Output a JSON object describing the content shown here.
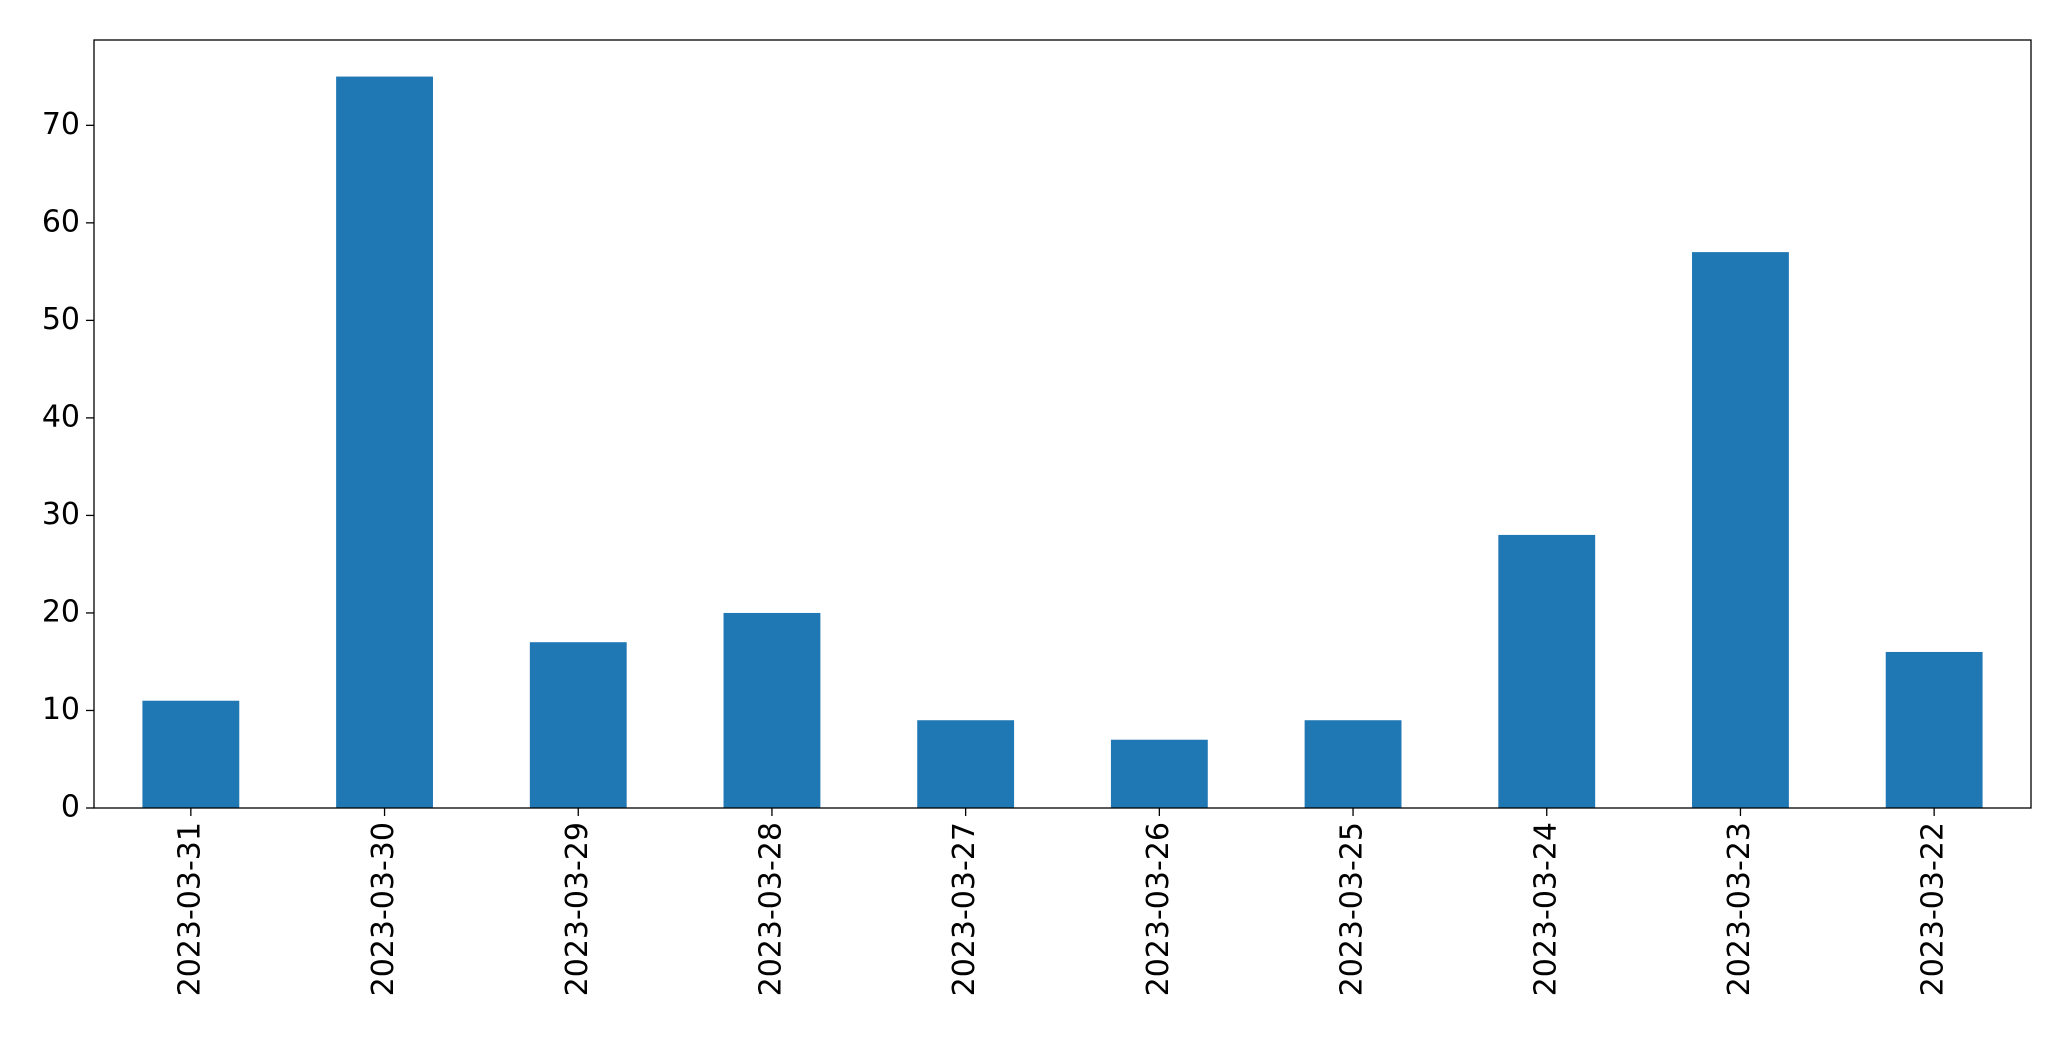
{
  "chart_data": {
    "type": "bar",
    "categories": [
      "2023-03-31",
      "2023-03-30",
      "2023-03-29",
      "2023-03-28",
      "2023-03-27",
      "2023-03-26",
      "2023-03-25",
      "2023-03-24",
      "2023-03-23",
      "2023-03-22"
    ],
    "values": [
      11,
      75,
      17,
      20,
      9,
      7,
      9,
      28,
      57,
      16
    ],
    "color": "#1f77b4",
    "ylim": [
      0,
      78.75
    ],
    "yticks": [
      0,
      10,
      20,
      30,
      40,
      50,
      60,
      70
    ],
    "grid": false
  }
}
